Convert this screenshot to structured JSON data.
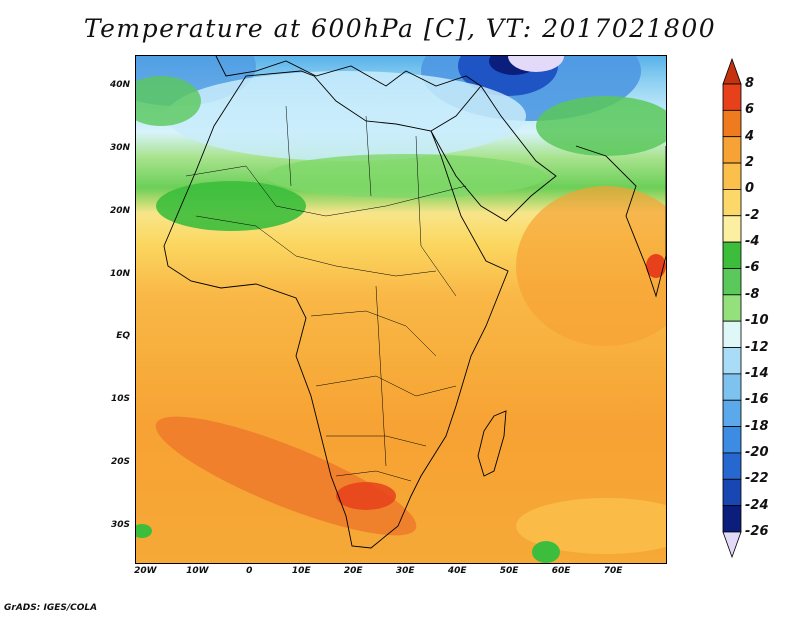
{
  "title": "Temperature at 600hPa [C], VT: 2017021800",
  "credit": "GrADS: IGES/COLA",
  "axes": {
    "lat_ticks": [
      "40N",
      "30N",
      "20N",
      "10N",
      "EQ",
      "10S",
      "20S",
      "30S"
    ],
    "lat_values": [
      40,
      30,
      20,
      10,
      0,
      -10,
      -20,
      -30
    ],
    "lon_ticks": [
      "20W",
      "10W",
      "0",
      "10E",
      "20E",
      "30E",
      "40E",
      "50E",
      "60E",
      "70E"
    ],
    "lon_values": [
      -20,
      -10,
      0,
      10,
      20,
      30,
      40,
      50,
      60,
      70
    ],
    "lon_range": [
      -22,
      80
    ],
    "lat_range": [
      -35.8,
      45
    ]
  },
  "colorbar": {
    "labels": [
      "8",
      "6",
      "4",
      "2",
      "0",
      "-2",
      "-4",
      "-6",
      "-8",
      "-10",
      "-12",
      "-14",
      "-16",
      "-18",
      "-20",
      "-22",
      "-24",
      "-26"
    ],
    "colors": [
      "#c4320e",
      "#e6411b",
      "#f07a1e",
      "#f7a234",
      "#fbc04c",
      "#fcd86a",
      "#fcefa2",
      "#3cbe3c",
      "#5ac85a",
      "#94e07c",
      "#dff7f6",
      "#a9dcf6",
      "#7ec3f0",
      "#5ba9ea",
      "#3b8ce2",
      "#2667d0",
      "#1847b4",
      "#0c1e7c",
      "#e3d9f8"
    ]
  }
}
